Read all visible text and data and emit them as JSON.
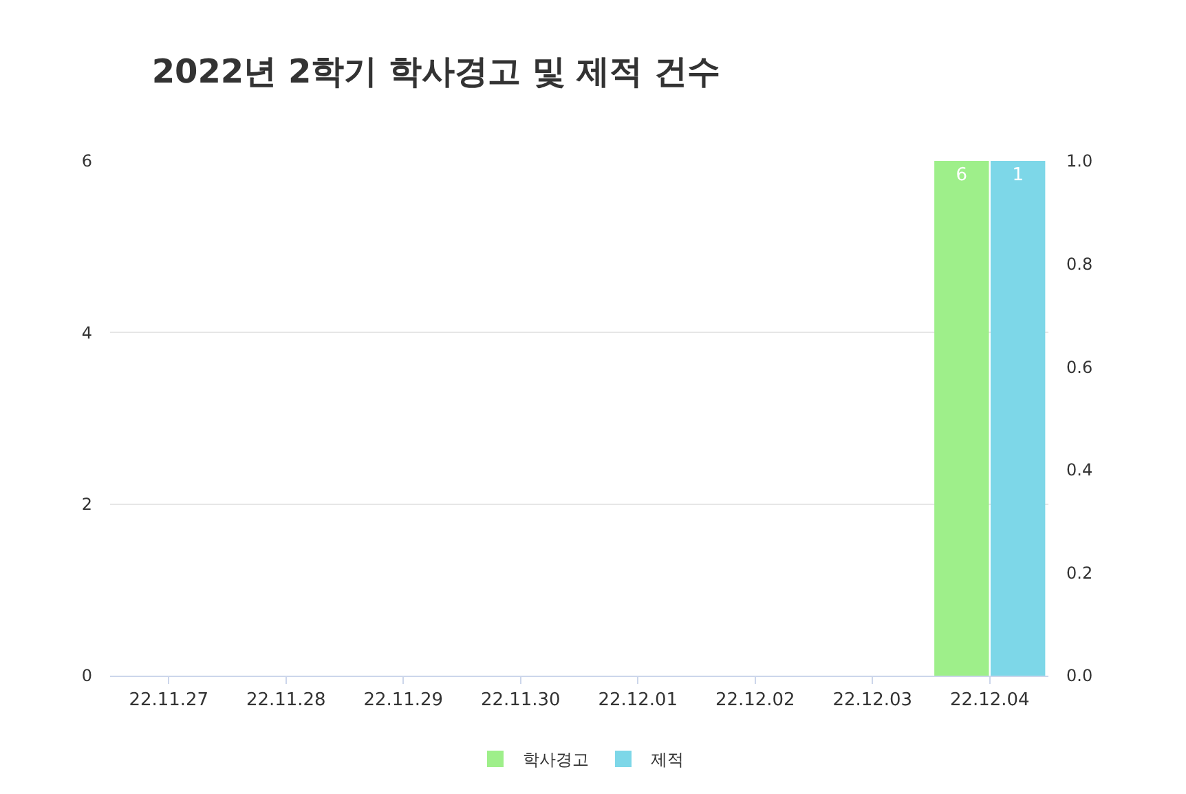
{
  "chart_data": {
    "type": "bar",
    "title": "2022년 2학기 학사경고 및 제적 건수",
    "categories": [
      "22.11.27",
      "22.11.28",
      "22.11.29",
      "22.11.30",
      "22.12.01",
      "22.12.02",
      "22.12.03",
      "22.12.04"
    ],
    "series": [
      {
        "name": "학사경고",
        "color": "#9eef8a",
        "values": [
          0,
          0,
          0,
          0,
          0,
          0,
          0,
          6
        ],
        "value_labels": [
          null,
          null,
          null,
          null,
          null,
          null,
          null,
          "6"
        ]
      },
      {
        "name": "제적",
        "color": "#7dd7e8",
        "axis": "y2",
        "values": [
          0,
          0,
          0,
          0,
          0,
          0,
          0,
          1
        ],
        "value_labels": [
          null,
          null,
          null,
          null,
          null,
          null,
          null,
          "1"
        ]
      }
    ],
    "ylim": [
      0,
      6
    ],
    "yticks": [
      0,
      2,
      4,
      6
    ],
    "y2lim": [
      0,
      1
    ],
    "y2ticks": [
      {
        "value": 0,
        "label": "0.0"
      },
      {
        "value": 0.2,
        "label": "0.2"
      },
      {
        "value": 0.4,
        "label": "0.4"
      },
      {
        "value": 0.6,
        "label": "0.6"
      },
      {
        "value": 0.8,
        "label": "0.8"
      },
      {
        "value": 1,
        "label": "1.0"
      }
    ],
    "grid": "y",
    "legend": "bottom"
  }
}
